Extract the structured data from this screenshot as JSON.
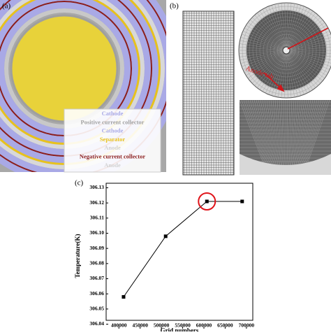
{
  "figure": {
    "panel_a": {
      "label": "(a)",
      "legend": [
        {
          "text": "Cathode",
          "color": "#a9a9e6"
        },
        {
          "text": "Positive current collector",
          "color": "#a0a0a0"
        },
        {
          "text": "Cathode",
          "color": "#a9a9e6"
        },
        {
          "text": "Separator",
          "color": "#e8c21c"
        },
        {
          "text": "Anode",
          "color": "#d2d2d2"
        },
        {
          "text": "Negative current collector",
          "color": "#8b1c1c"
        },
        {
          "text": "Anode",
          "color": "#d2d2d2"
        }
      ]
    },
    "panel_b": {
      "label": "(b)",
      "annotation": "Anode tab"
    },
    "panel_c": {
      "label": "(c)"
    }
  },
  "chart_data": {
    "type": "line",
    "x_label": "Grid numbers",
    "y_label": "Temperature(K)",
    "x": [
      411000,
      510000,
      607000,
      690000
    ],
    "series": [
      {
        "color": "#000000",
        "values": [
          306.058,
          306.098,
          306.121,
          306.121
        ]
      }
    ],
    "xlim": [
      370000,
      715000
    ],
    "xticks": [
      400000,
      450000,
      500000,
      550000,
      600000,
      650000,
      700000
    ],
    "ylim": [
      306.037,
      306.133
    ],
    "yticks": [
      306.04,
      306.05,
      306.06,
      306.07,
      306.08,
      306.09,
      {
        "value": 306.1,
        "label": "306.10"
      },
      306.11,
      306.12,
      306.13
    ]
  }
}
